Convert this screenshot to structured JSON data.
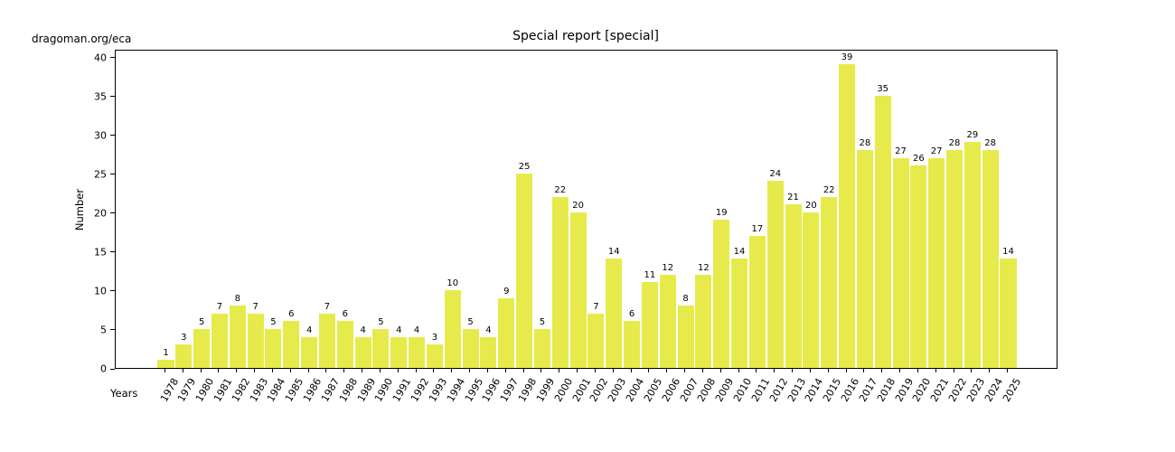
{
  "page": {
    "watermark": "dragoman.org/eca"
  },
  "chart_data": {
    "type": "bar",
    "title": "Special report [special]",
    "xlabel": "Years",
    "ylabel": "Number",
    "categories": [
      "1978",
      "1979",
      "1980",
      "1981",
      "1982",
      "1983",
      "1984",
      "1985",
      "1986",
      "1987",
      "1988",
      "1989",
      "1990",
      "1991",
      "1992",
      "1993",
      "1994",
      "1995",
      "1996",
      "1997",
      "1998",
      "1999",
      "2000",
      "2001",
      "2002",
      "2003",
      "2004",
      "2005",
      "2006",
      "2007",
      "2008",
      "2009",
      "2010",
      "2011",
      "2012",
      "2013",
      "2014",
      "2015",
      "2016",
      "2017",
      "2018",
      "2019",
      "2020",
      "2021",
      "2022",
      "2023",
      "2024",
      "2025"
    ],
    "values": [
      1,
      3,
      5,
      7,
      8,
      7,
      5,
      6,
      4,
      7,
      6,
      4,
      5,
      4,
      4,
      3,
      10,
      5,
      4,
      9,
      25,
      5,
      22,
      20,
      7,
      14,
      6,
      11,
      12,
      8,
      12,
      19,
      14,
      17,
      24,
      21,
      20,
      22,
      39,
      28,
      35,
      27,
      26,
      27,
      28,
      29,
      28,
      14
    ],
    "ylim": [
      0,
      41
    ],
    "yticks": [
      0,
      5,
      10,
      15,
      20,
      25,
      30,
      35,
      40
    ],
    "bar_color": "#e6eb4b",
    "grid": false,
    "value_labels": true,
    "legend": null
  }
}
